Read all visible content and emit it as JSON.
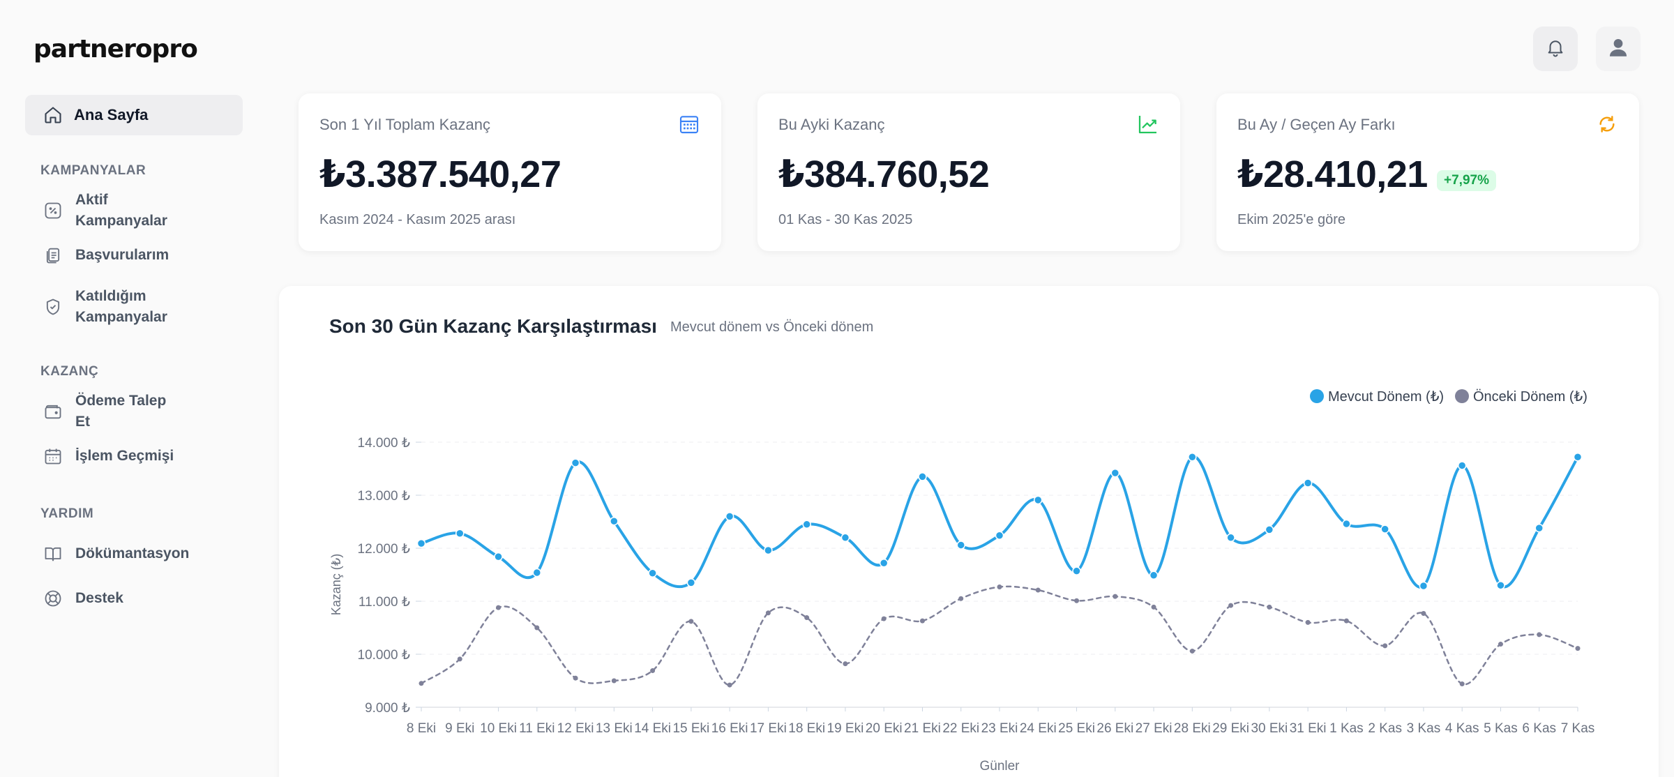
{
  "app": {
    "logo_text": "partneropro"
  },
  "sidebar": {
    "home": {
      "label": "Ana Sayfa",
      "icon": "home-icon"
    },
    "sections": [
      {
        "title": "KAMPANYALAR",
        "items": [
          {
            "label": "Aktif Kampanyalar",
            "icon": "percent-badge-icon"
          },
          {
            "label": "Başvurularım",
            "icon": "documents-icon"
          },
          {
            "label": "Katıldığım Kampanyalar",
            "icon": "shield-check-icon"
          }
        ]
      },
      {
        "title": "KAZANÇ",
        "items": [
          {
            "label": "Ödeme Talep Et",
            "icon": "wallet-icon"
          },
          {
            "label": "İşlem Geçmişi",
            "icon": "calendar-icon"
          }
        ]
      },
      {
        "title": "YARDIM",
        "items": [
          {
            "label": "Dökümantasyon",
            "icon": "book-icon"
          },
          {
            "label": "Destek",
            "icon": "lifebuoy-icon"
          }
        ]
      }
    ]
  },
  "header": {
    "notification_icon": "bell-icon",
    "profile_icon": "user-icon"
  },
  "cards": [
    {
      "title": "Son 1 Yıl Toplam Kazanç",
      "value": "₺3.387.540,27",
      "sub": "Kasım 2024 - Kasım 2025 arası",
      "icon": "calendar-grid-icon",
      "icon_color": "#3b82f6"
    },
    {
      "title": "Bu Ayki Kazanç",
      "value": "₺384.760,52",
      "sub": "01 Kas - 30 Kas 2025",
      "icon": "trend-up-icon",
      "icon_color": "#22c55e"
    },
    {
      "title": "Bu Ay / Geçen Ay Farkı",
      "value": "₺28.410,21",
      "badge": "+7,97%",
      "sub": "Ekim 2025'e göre",
      "icon": "refresh-icon",
      "icon_color": "#f59e0b"
    }
  ],
  "chart_panel": {
    "title": "Son 30 Gün Kazanç Karşılaştırması",
    "subtitle": "Mevcut dönem vs Önceki dönem"
  },
  "chart_data": {
    "type": "line",
    "xlabel": "Günler",
    "ylabel": "Kazanç (₺)",
    "ylim": [
      9000,
      14000
    ],
    "yticks": [
      "9.000 ₺",
      "10.000 ₺",
      "11.000 ₺",
      "12.000 ₺",
      "13.000 ₺",
      "14.000 ₺"
    ],
    "legend_position": "top-right",
    "categories": [
      "8 Eki",
      "9 Eki",
      "10 Eki",
      "11 Eki",
      "12 Eki",
      "13 Eki",
      "14 Eki",
      "15 Eki",
      "16 Eki",
      "17 Eki",
      "18 Eki",
      "19 Eki",
      "20 Eki",
      "21 Eki",
      "22 Eki",
      "23 Eki",
      "24 Eki",
      "25 Eki",
      "26 Eki",
      "27 Eki",
      "28 Eki",
      "29 Eki",
      "30 Eki",
      "31 Eki",
      "1 Kas",
      "2 Kas",
      "3 Kas",
      "4 Kas",
      "5 Kas",
      "6 Kas",
      "7 Kas"
    ],
    "series": [
      {
        "name": "Mevcut Dönem (₺)",
        "color": "#29a3e6",
        "style": "solid",
        "values": [
          12090,
          12280,
          11840,
          11540,
          13610,
          12510,
          11530,
          11350,
          12600,
          11960,
          12450,
          12200,
          11720,
          13350,
          12060,
          12240,
          12910,
          11570,
          13420,
          11490,
          13720,
          12200,
          12350,
          13230,
          12460,
          12360,
          11290,
          13560,
          11300,
          12380,
          13720
        ]
      },
      {
        "name": "Önceki Dönem (₺)",
        "color": "#7f8199",
        "style": "dashed",
        "values": [
          9450,
          9910,
          10880,
          10500,
          9550,
          9500,
          9690,
          10620,
          9420,
          10780,
          10690,
          9820,
          10670,
          10630,
          11050,
          11270,
          11210,
          11010,
          11090,
          10890,
          10060,
          10920,
          10890,
          10600,
          10630,
          10160,
          10770,
          9440,
          10190,
          10370,
          10110
        ]
      }
    ]
  }
}
